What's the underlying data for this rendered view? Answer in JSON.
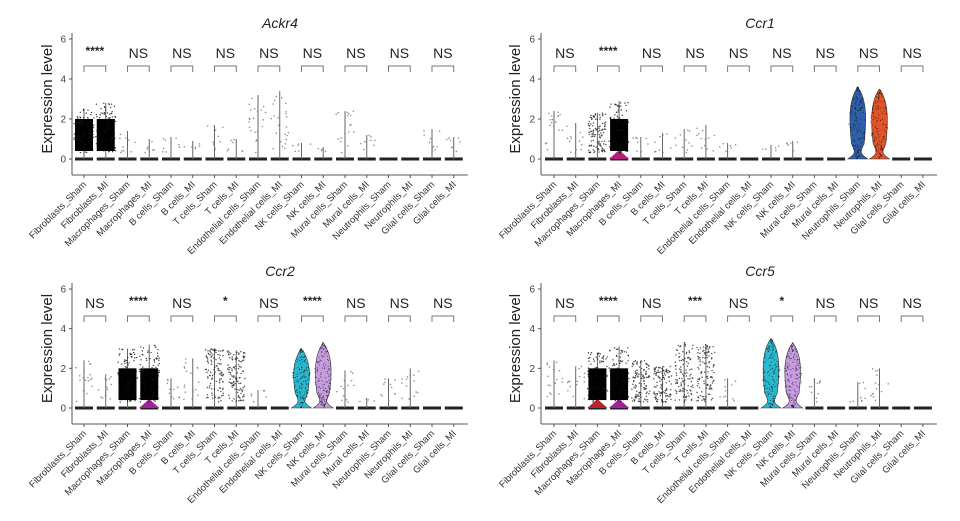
{
  "chart_data": [
    {
      "type": "violin",
      "title": "Ackr4",
      "ylabel": "Expression level",
      "xlabel": "",
      "ylim": [
        0,
        6
      ],
      "yticks": [
        0,
        2,
        4,
        6
      ],
      "categories": [
        "Fibroblasts_Sham",
        "Fibroblasts_MI",
        "Macrophages_Sham",
        "Macrophages_MI",
        "B cells_Sham",
        "B cells_MI",
        "T cells_Sham",
        "T cells_MI",
        "Endothelial cells_Sham",
        "Endothelial cells_MI",
        "NK cells_Sham",
        "NK cells_MI",
        "Mural cells_Sham",
        "Mural cells_MI",
        "Neutrophils_Sham",
        "Neutrophils_MI",
        "Glial cells_Sham",
        "Glial cells_MI"
      ],
      "max_values": [
        2.5,
        2.8,
        1.4,
        1.0,
        1.1,
        0.9,
        1.7,
        1.0,
        3.2,
        3.4,
        0.8,
        0.6,
        2.4,
        1.2,
        0,
        0,
        1.5,
        1.1
      ],
      "density": [
        "dense",
        "dense",
        "sparse",
        "sparse",
        "sparse",
        "sparse",
        "sparse",
        "sparse",
        "sparse",
        "sparse",
        "sparse",
        "sparse",
        "sparse",
        "sparse",
        "none",
        "none",
        "sparse",
        "sparse"
      ],
      "fill_colors": [
        null,
        null,
        null,
        null,
        null,
        null,
        null,
        null,
        null,
        null,
        null,
        null,
        null,
        null,
        null,
        null,
        null,
        null
      ],
      "comparisons": [
        "****",
        "NS",
        "NS",
        "NS",
        "NS",
        "NS",
        "NS",
        "NS",
        "NS"
      ]
    },
    {
      "type": "violin",
      "title": "Ccr1",
      "ylabel": "Expression level",
      "xlabel": "",
      "ylim": [
        0,
        6
      ],
      "yticks": [
        0,
        2,
        4,
        6
      ],
      "categories": [
        "Fibroblasts_Sham",
        "Fibroblasts_MI",
        "Macrophages_Sham",
        "Macrophages_MI",
        "B cells_Sham",
        "B cells_MI",
        "T cells_Sham",
        "T cells_MI",
        "Endothelial cells_Sham",
        "Endothelial cells_MI",
        "NK cells_Sham",
        "NK cells_MI",
        "Mural cells_Sham",
        "Mural cells_MI",
        "Neutrophils_Sham",
        "Neutrophils_MI",
        "Glial cells_Sham",
        "Glial cells_MI"
      ],
      "max_values": [
        2.4,
        1.8,
        2.3,
        2.9,
        1.1,
        1.3,
        1.5,
        1.7,
        0.8,
        0,
        0.7,
        0.9,
        0,
        0,
        3.6,
        3.5,
        0,
        0
      ],
      "density": [
        "sparse",
        "sparse",
        "medium",
        "dense",
        "sparse",
        "sparse",
        "sparse",
        "sparse",
        "sparse",
        "none",
        "sparse",
        "sparse",
        "none",
        "none",
        "violin",
        "violin",
        "none",
        "none"
      ],
      "fill_colors": [
        null,
        null,
        null,
        "#b0207a",
        null,
        null,
        null,
        null,
        null,
        null,
        null,
        null,
        null,
        null,
        "#2e5fa8",
        "#e0542a",
        null,
        null
      ],
      "comparisons": [
        "NS",
        "****",
        "NS",
        "NS",
        "NS",
        "NS",
        "NS",
        "NS",
        "NS"
      ]
    },
    {
      "type": "violin",
      "title": "Ccr2",
      "ylabel": "Expression level",
      "xlabel": "",
      "ylim": [
        0,
        6
      ],
      "yticks": [
        0,
        2,
        4,
        6
      ],
      "categories": [
        "Fibroblasts_Sham",
        "Fibroblasts_MI",
        "Macrophages_Sham",
        "Macrophages_MI",
        "B cells_Sham",
        "B cells_MI",
        "T cells_Sham",
        "T cells_MI",
        "Endothelial cells_Sham",
        "Endothelial cells_MI",
        "NK cells_Sham",
        "NK cells_MI",
        "Mural cells_Sham",
        "Mural cells_MI",
        "Neutrophils_Sham",
        "Neutrophils_MI",
        "Glial cells_Sham",
        "Glial cells_MI"
      ],
      "max_values": [
        2.4,
        1.7,
        3.0,
        3.2,
        1.5,
        2.5,
        3.0,
        2.9,
        0.9,
        0,
        3.0,
        3.3,
        1.9,
        0.5,
        1.5,
        2.0,
        0,
        0
      ],
      "density": [
        "sparse",
        "sparse",
        "dense",
        "dense",
        "sparse",
        "sparse",
        "medium",
        "medium",
        "sparse",
        "none",
        "violin",
        "violin",
        "sparse",
        "sparse",
        "sparse",
        "sparse",
        "none",
        "none"
      ],
      "fill_colors": [
        null,
        null,
        null,
        "#a01f9a",
        null,
        null,
        null,
        null,
        null,
        null,
        "#2bb8cf",
        "#c79be0",
        null,
        null,
        null,
        null,
        null,
        null
      ],
      "comparisons": [
        "NS",
        "****",
        "NS",
        "*",
        "NS",
        "****",
        "NS",
        "NS",
        "NS"
      ]
    },
    {
      "type": "violin",
      "title": "Ccr5",
      "ylabel": "Expression level",
      "xlabel": "",
      "ylim": [
        0,
        6
      ],
      "yticks": [
        0,
        2,
        4,
        6
      ],
      "categories": [
        "Fibroblasts_Sham",
        "Fibroblasts_MI",
        "Macrophages_Sham",
        "Macrophages_MI",
        "B cells_Sham",
        "B cells_MI",
        "T cells_Sham",
        "T cells_MI",
        "Endothelial cells_Sham",
        "Endothelial cells_MI",
        "NK cells_Sham",
        "NK cells_MI",
        "Mural cells_Sham",
        "Mural cells_MI",
        "Neutrophils_Sham",
        "Neutrophils_MI",
        "Glial cells_Sham",
        "Glial cells_MI"
      ],
      "max_values": [
        2.4,
        2.1,
        2.8,
        3.1,
        2.4,
        2.1,
        3.3,
        3.2,
        1.5,
        0,
        3.5,
        3.3,
        1.5,
        0,
        1.3,
        2.0,
        0,
        0
      ],
      "density": [
        "sparse",
        "sparse",
        "dense",
        "dense",
        "medium",
        "medium",
        "medium",
        "medium",
        "sparse",
        "none",
        "violin",
        "violin",
        "sparse",
        "none",
        "sparse",
        "sparse",
        "none",
        "none"
      ],
      "fill_colors": [
        null,
        null,
        "#b8252e",
        "#a01f9a",
        null,
        null,
        null,
        null,
        null,
        null,
        "#2bb8cf",
        "#c79be0",
        null,
        null,
        null,
        null,
        null,
        null
      ],
      "comparisons": [
        "NS",
        "****",
        "NS",
        "***",
        "NS",
        "*",
        "NS",
        "NS",
        "NS"
      ]
    }
  ]
}
